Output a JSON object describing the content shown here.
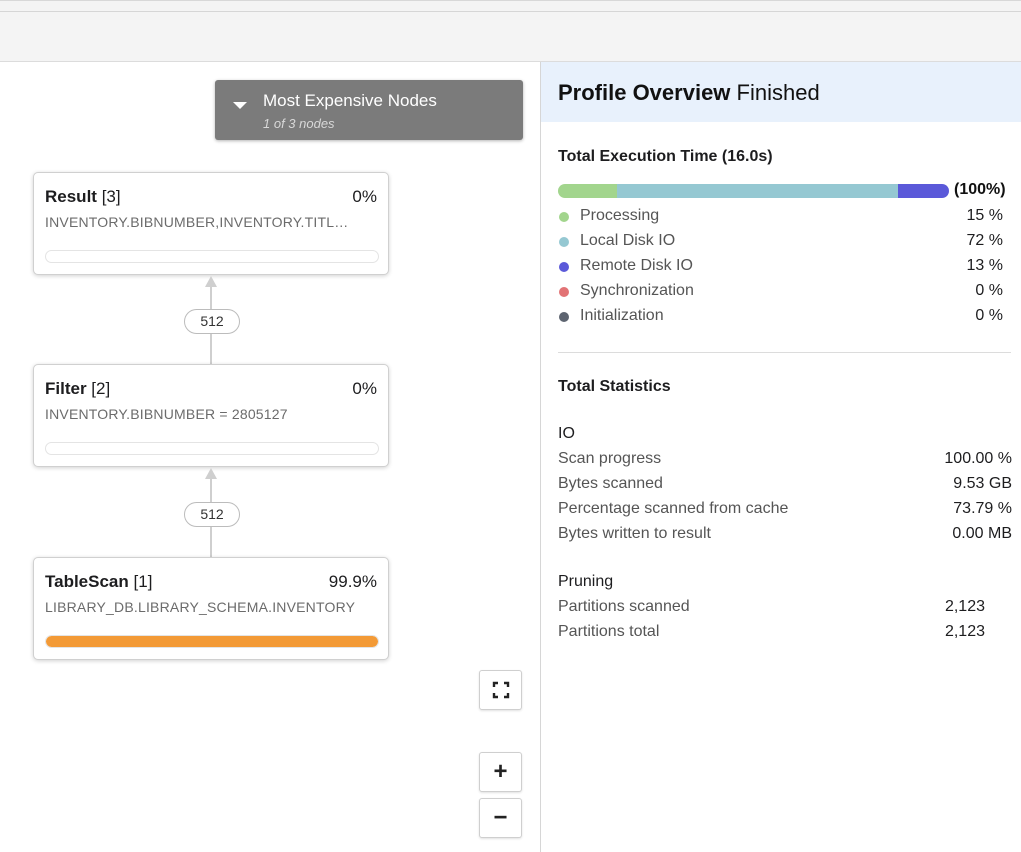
{
  "graph": {
    "expensive": {
      "title": "Most Expensive Nodes",
      "subtitle": "1 of 3 nodes"
    },
    "nodes": [
      {
        "name": "Result",
        "id": "[3]",
        "pct": "0%",
        "desc": "INVENTORY.BIBNUMBER,INVENTORY.TITL…",
        "progress": 0
      },
      {
        "name": "Filter",
        "id": "[2]",
        "pct": "0%",
        "desc": "INVENTORY.BIBNUMBER = 2805127",
        "progress": 0
      },
      {
        "name": "TableScan",
        "id": "[1]",
        "pct": "99.9%",
        "desc": "LIBRARY_DB.LIBRARY_SCHEMA.INVENTORY",
        "progress": 0.999
      }
    ],
    "edges": [
      "512",
      "512"
    ],
    "controls": {
      "fit": "⛶",
      "zoom_in": "+",
      "zoom_out": "−"
    }
  },
  "panel": {
    "title_bold": "Profile Overview",
    "title_status": "Finished",
    "exec_heading": "Total Execution Time (16.0s)",
    "exec_total": "(100%)",
    "breakdown": [
      {
        "label": "Processing",
        "value": "15 %",
        "fraction": 0.15,
        "color": "#a2d58d"
      },
      {
        "label": "Local Disk IO",
        "value": "72 %",
        "fraction": 0.72,
        "color": "#95c8d2"
      },
      {
        "label": "Remote Disk IO",
        "value": "13 %",
        "fraction": 0.13,
        "color": "#5b59d9"
      },
      {
        "label": "Synchronization",
        "value": "0 %",
        "fraction": 0,
        "color": "#e27375"
      },
      {
        "label": "Initialization",
        "value": "0 %",
        "fraction": 0,
        "color": "#5d6470"
      }
    ],
    "stats_heading": "Total Statistics",
    "io": {
      "heading": "IO",
      "rows": [
        {
          "label": "Scan progress",
          "value": "100.00 %"
        },
        {
          "label": "Bytes scanned",
          "value": "9.53 GB"
        },
        {
          "label": "Percentage scanned from cache",
          "value": "73.79 %"
        },
        {
          "label": "Bytes written to result",
          "value": "0.00 MB"
        }
      ]
    },
    "pruning": {
      "heading": "Pruning",
      "rows": [
        {
          "label": "Partitions scanned",
          "value": "2,123"
        },
        {
          "label": "Partitions total",
          "value": "2,123"
        }
      ]
    }
  }
}
